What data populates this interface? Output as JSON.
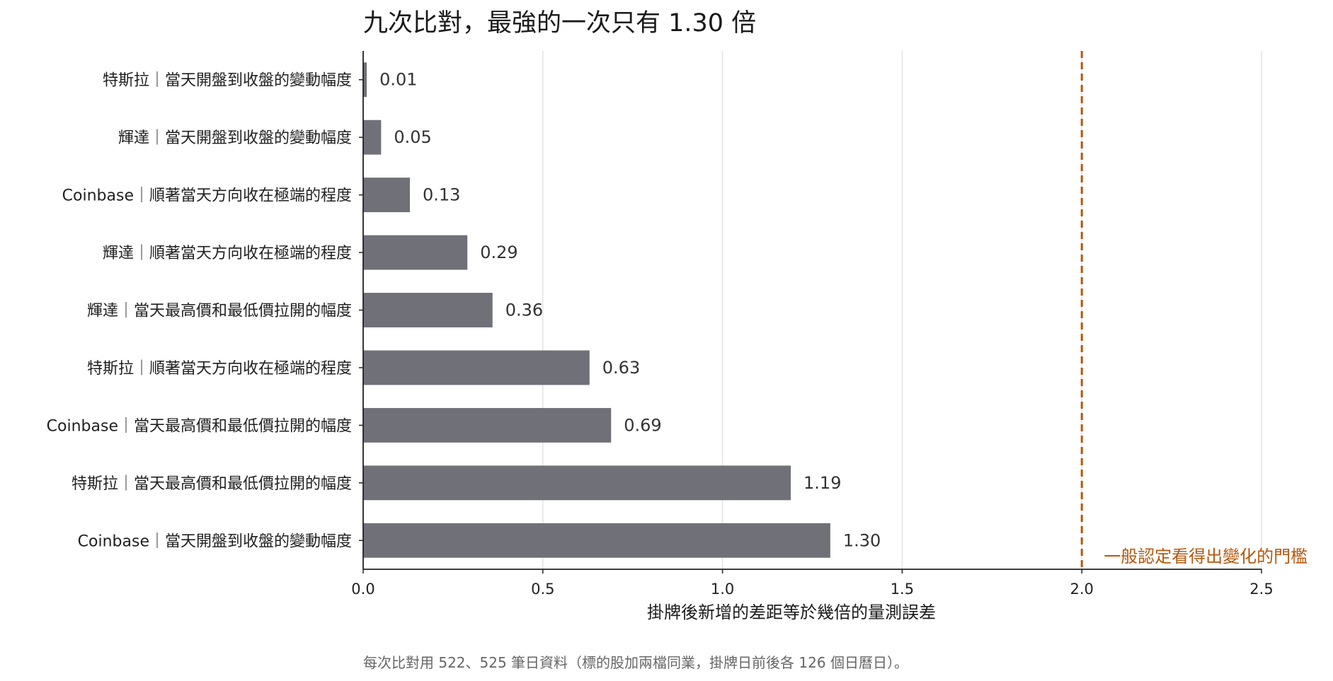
{
  "chart_data": {
    "type": "bar",
    "orientation": "horizontal",
    "title": "九次比對，最強的一次只有 1.30 倍",
    "xlabel": "掛牌後新增的差距等於幾倍的量測誤差",
    "ylabel": "",
    "xlim": [
      0,
      2.5
    ],
    "xticks": [
      "0.0",
      "0.5",
      "1.0",
      "1.5",
      "2.0",
      "2.5"
    ],
    "grid": "vertical",
    "categories": [
      "特斯拉｜當天開盤到收盤的變動幅度",
      "輝達｜當天開盤到收盤的變動幅度",
      "Coinbase｜順著當天方向收在極端的程度",
      "輝達｜順著當天方向收在極端的程度",
      "輝達｜當天最高價和最低價拉開的幅度",
      "特斯拉｜順著當天方向收在極端的程度",
      "Coinbase｜當天最高價和最低價拉開的幅度",
      "特斯拉｜當天最高價和最低價拉開的幅度",
      "Coinbase｜當天開盤到收盤的變動幅度"
    ],
    "values": [
      0.01,
      0.05,
      0.13,
      0.29,
      0.36,
      0.63,
      0.69,
      1.19,
      1.3
    ],
    "value_labels": [
      "0.01",
      "0.05",
      "0.13",
      "0.29",
      "0.36",
      "0.63",
      "0.69",
      "1.19",
      "1.30"
    ],
    "bar_color": "#707078",
    "threshold": {
      "value": 2.0,
      "label": "一般認定看得出變化的門檻",
      "color": "#b8560c",
      "style": "dashed"
    },
    "footnote": "每次比對用 522、525 筆日資料（標的股加兩檔同業，掛牌日前後各 126 個日曆日）。"
  }
}
